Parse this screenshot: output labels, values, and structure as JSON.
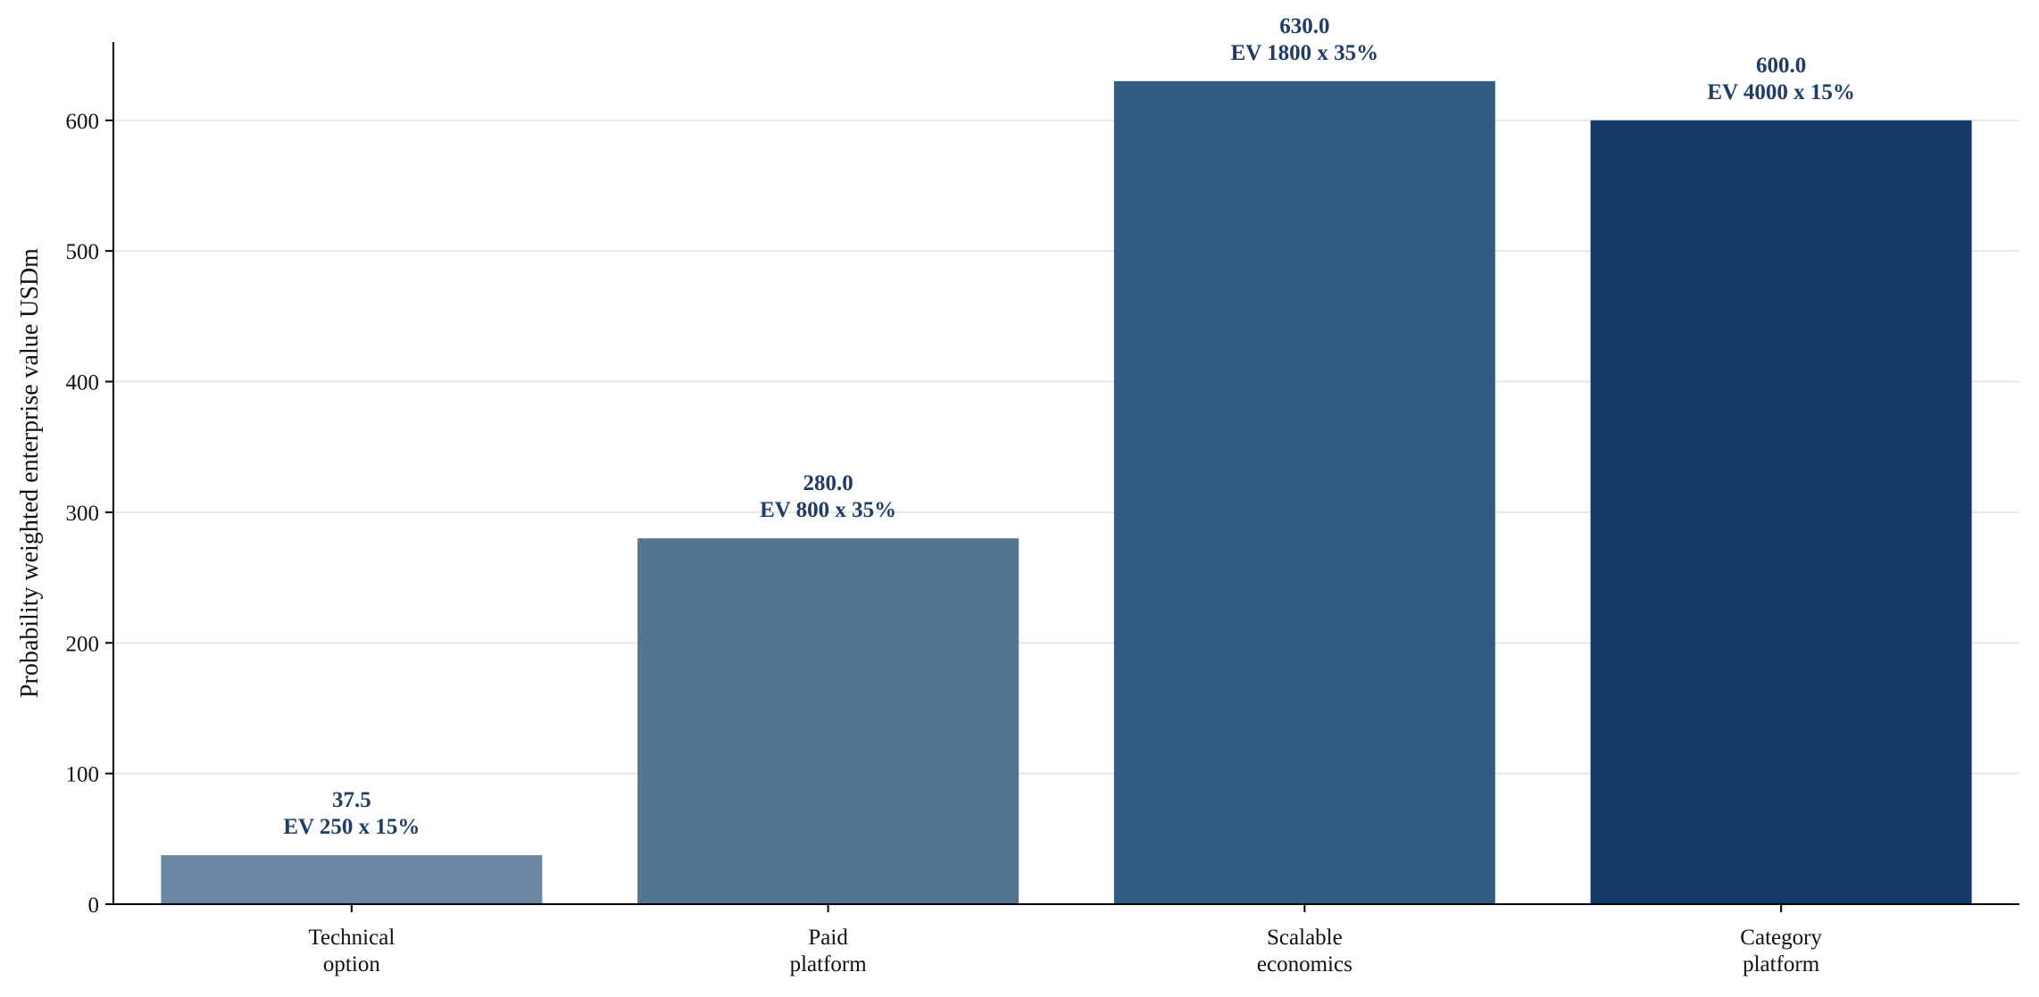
{
  "chart_data": {
    "type": "bar",
    "title": "",
    "xlabel": "",
    "ylabel": "Probability weighted enterprise value USDm",
    "categories": [
      [
        "Technical",
        "option"
      ],
      [
        "Paid",
        "platform"
      ],
      [
        "Scalable",
        "economics"
      ],
      [
        "Category",
        "platform"
      ]
    ],
    "values": [
      37.5,
      280.0,
      630.0,
      600.0
    ],
    "value_labels": [
      "37.5",
      "280.0",
      "630.0",
      "600.0"
    ],
    "annotations": [
      "EV 250 x 15%",
      "EV 800 x 35%",
      "EV 1800 x 35%",
      "EV 4000 x 15%"
    ],
    "ylim": [
      0,
      660
    ],
    "yticks": [
      0,
      100,
      200,
      300,
      400,
      500,
      600
    ],
    "grid": "horizontal",
    "legend": "none",
    "colors": {
      "bars": [
        "#6b87a3",
        "#537591",
        "#335c84",
        "#143a68"
      ],
      "label_text": "#1f3d66",
      "grid": "#e6e6e6",
      "axis": "#000000"
    }
  }
}
